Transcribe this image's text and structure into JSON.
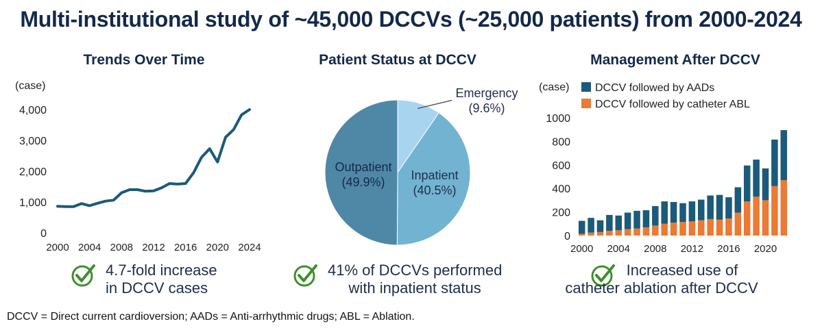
{
  "title": "Multi-institutional study of ~45,000 DCCVs (~25,000 patients) from 2000-2024",
  "colors": {
    "dark_blue": "#1b5a7a",
    "orange": "#ea7a34",
    "check_green": "#3f8f2d",
    "title_navy": "#13294b"
  },
  "chart_data": [
    {
      "type": "line",
      "title": "Trends Over Time",
      "ylabel": "(case)",
      "xlabel": "",
      "ylim": [
        0,
        4000
      ],
      "xlim": [
        2000,
        2024
      ],
      "x_ticks": [
        "2000",
        "2004",
        "2008",
        "2012",
        "2016",
        "2020",
        "2024"
      ],
      "y_ticks": [
        "0",
        "1,000",
        "2,000",
        "3,000",
        "4,000"
      ],
      "x": [
        2000,
        2001,
        2002,
        2003,
        2004,
        2005,
        2006,
        2007,
        2008,
        2009,
        2010,
        2011,
        2012,
        2013,
        2014,
        2015,
        2016,
        2017,
        2018,
        2019,
        2020,
        2021,
        2022,
        2023,
        2024
      ],
      "values": [
        860,
        850,
        850,
        950,
        880,
        960,
        1030,
        1060,
        1300,
        1400,
        1400,
        1350,
        1360,
        1460,
        1600,
        1580,
        1600,
        1950,
        2450,
        2730,
        2300,
        3100,
        3350,
        3830,
        4000
      ],
      "color": "#1b5a7a"
    },
    {
      "type": "pie",
      "title": "Patient Status at DCCV",
      "slices": [
        {
          "label": "Emergency",
          "pct_label": "(9.6%)",
          "value": 9.6,
          "color": "#a9d4ef"
        },
        {
          "label": "Inpatient",
          "pct_label": "(40.5%)",
          "value": 40.5,
          "color": "#72b3d1"
        },
        {
          "label": "Outpatient",
          "pct_label": "(49.9%)",
          "value": 49.9,
          "color": "#4f88a6"
        }
      ]
    },
    {
      "type": "bar",
      "stacked": true,
      "title": "Management After DCCV",
      "ylabel": "(case)",
      "ylim": [
        0,
        1000
      ],
      "x_ticks": [
        "2000",
        "2004",
        "2008",
        "2012",
        "2016",
        "2020"
      ],
      "y_ticks": [
        "0",
        "200",
        "400",
        "600",
        "800",
        "1000"
      ],
      "categories": [
        "2000",
        "2001",
        "2002",
        "2003",
        "2004",
        "2005",
        "2006",
        "2007",
        "2008",
        "2009",
        "2010",
        "2011",
        "2012",
        "2013",
        "2014",
        "2015",
        "2016",
        "2017",
        "2018",
        "2019",
        "2020",
        "2021",
        "2022"
      ],
      "series": [
        {
          "name": "DCCV followed by catheter ABL",
          "color": "#ea7a34",
          "values": [
            15,
            25,
            30,
            40,
            45,
            55,
            60,
            70,
            85,
            100,
            110,
            115,
            120,
            130,
            140,
            135,
            145,
            195,
            290,
            330,
            300,
            420,
            470
          ]
        },
        {
          "name": "DCCV followed by AADs",
          "color": "#1b5a7a",
          "values": [
            110,
            125,
            100,
            135,
            125,
            140,
            150,
            145,
            165,
            190,
            175,
            160,
            170,
            175,
            200,
            210,
            180,
            215,
            305,
            315,
            270,
            395,
            425
          ]
        }
      ]
    }
  ],
  "takeaways": {
    "left": [
      "4.7-fold increase",
      "in DCCV cases"
    ],
    "middle": [
      "41% of DCCVs performed",
      "with inpatient status"
    ],
    "right": [
      "Increased use of",
      "catheter ablation after DCCV"
    ]
  },
  "footnote": "DCCV = Direct current cardioversion; AADs = Anti-arrhythmic drugs; ABL = Ablation."
}
